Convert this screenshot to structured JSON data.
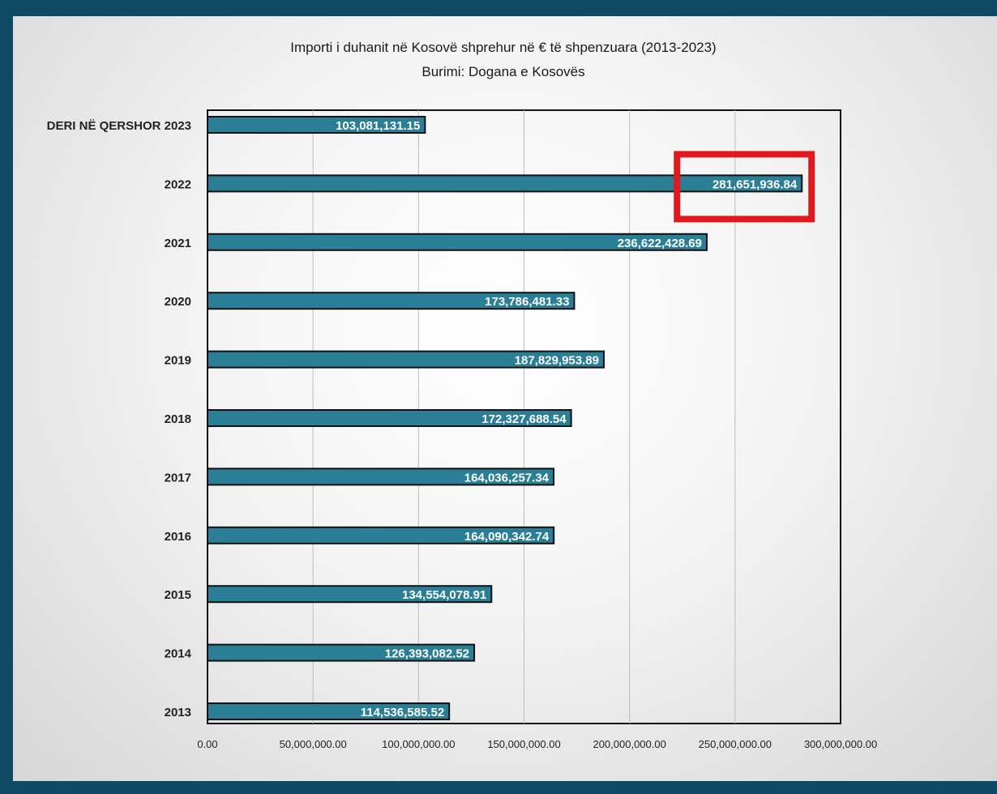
{
  "chart_data": {
    "type": "bar",
    "orientation": "horizontal",
    "title": "Importi i duhanit në Kosovë shprehur në € të shpenzuara (2013-2023)",
    "subtitle": "Burimi: Dogana e Kosovës",
    "categories": [
      "DERI NË QERSHOR 2023",
      "2022",
      "2021",
      "2020",
      "2019",
      "2018",
      "2017",
      "2016",
      "2015",
      "2014",
      "2013"
    ],
    "values": [
      103081131.15,
      281651936.84,
      236622428.69,
      173786481.33,
      187829953.89,
      172327688.54,
      164036257.34,
      164090342.74,
      134554078.91,
      126393082.52,
      114536585.52
    ],
    "value_labels": [
      "103,081,131.15",
      "281,651,936.84",
      "236,622,428.69",
      "173,786,481.33",
      "187,829,953.89",
      "172,327,688.54",
      "164,036,257.34",
      "164,090,342.74",
      "134,554,078.91",
      "126,393,082.52",
      "114,536,585.52"
    ],
    "x_ticks": [
      0,
      50000000,
      100000000,
      150000000,
      200000000,
      250000000,
      300000000
    ],
    "x_tick_labels": [
      "0.00",
      "50,000,000.00",
      "100,000,000.00",
      "150,000,000.00",
      "200,000,000.00",
      "250,000,000.00",
      "300,000,000.00"
    ],
    "xlim": [
      0,
      300000000
    ],
    "grid": "vertical",
    "highlight_category": "2022",
    "colors": {
      "bar": "#2a7f97",
      "bar_border": "#111111",
      "highlight_box": "#e0191f",
      "frame": "#0d4a63"
    }
  }
}
